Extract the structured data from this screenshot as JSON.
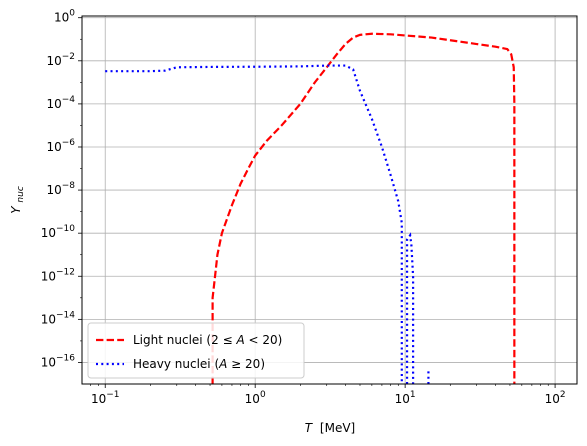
{
  "chart_data": {
    "type": "line",
    "title": "",
    "xlabel_main": "T",
    "xlabel_unit": "[MeV]",
    "ylabel_base": "Y",
    "ylabel_sub": "nuc",
    "xscale": "log",
    "yscale": "log",
    "xlim": [
      0.07,
      140
    ],
    "ylim": [
      1e-17,
      1.2
    ],
    "grid": true,
    "legend_position": "lower-left",
    "x_ticks": [
      {
        "value": 0.1,
        "base": "10",
        "exp": "−1"
      },
      {
        "value": 1,
        "base": "10",
        "exp": "0"
      },
      {
        "value": 10,
        "base": "10",
        "exp": "1"
      },
      {
        "value": 100,
        "base": "10",
        "exp": "2"
      }
    ],
    "y_ticks": [
      {
        "value": 1,
        "base": "10",
        "exp": "0"
      },
      {
        "value": 0.01,
        "base": "10",
        "exp": "−2"
      },
      {
        "value": 0.0001,
        "base": "10",
        "exp": "−4"
      },
      {
        "value": 1e-06,
        "base": "10",
        "exp": "−6"
      },
      {
        "value": 1e-08,
        "base": "10",
        "exp": "−8"
      },
      {
        "value": 1e-10,
        "base": "10",
        "exp": "−10"
      },
      {
        "value": 1e-12,
        "base": "10",
        "exp": "−12"
      },
      {
        "value": 1e-14,
        "base": "10",
        "exp": "−14"
      },
      {
        "value": 1e-16,
        "base": "10",
        "exp": "−16"
      }
    ],
    "series": [
      {
        "name": "Light nuclei (2 ≤ A < 20)",
        "color": "#ff0000",
        "style": "dashed",
        "segments": [
          [
            [
              0.52,
              1e-17
            ],
            [
              0.52,
              1e-13
            ],
            [
              0.54,
              1e-12
            ],
            [
              0.56,
              1e-11
            ],
            [
              0.6,
              1e-10
            ],
            [
              0.7,
              2e-09
            ],
            [
              0.8,
              2e-08
            ],
            [
              0.9,
              1e-07
            ],
            [
              1.0,
              4e-07
            ],
            [
              1.2,
              2e-06
            ],
            [
              1.5,
              1e-05
            ],
            [
              2.0,
              0.0001
            ],
            [
              2.5,
              0.001
            ],
            [
              3.0,
              0.005
            ],
            [
              3.5,
              0.02
            ],
            [
              4.0,
              0.06
            ],
            [
              4.5,
              0.12
            ],
            [
              5.0,
              0.16
            ],
            [
              6.0,
              0.18
            ],
            [
              8.0,
              0.17
            ],
            [
              10.0,
              0.15
            ],
            [
              15.0,
              0.12
            ],
            [
              20.0,
              0.09
            ],
            [
              30.0,
              0.06
            ],
            [
              40.0,
              0.045
            ],
            [
              48.0,
              0.035
            ],
            [
              51.0,
              0.02
            ],
            [
              53.0,
              0.005
            ],
            [
              53.5,
              0.0001
            ],
            [
              53.5,
              1e-17
            ]
          ]
        ]
      },
      {
        "name": "Heavy nuclei (A ≥ 20)",
        "color": "#0000ff",
        "style": "dotted",
        "segments": [
          [
            [
              0.1,
              0.0033
            ],
            [
              0.15,
              0.0033
            ],
            [
              0.2,
              0.0033
            ],
            [
              0.25,
              0.0035
            ],
            [
              0.3,
              0.005
            ],
            [
              0.5,
              0.0052
            ],
            [
              1.0,
              0.0053
            ],
            [
              2.0,
              0.0055
            ],
            [
              3.0,
              0.006
            ],
            [
              4.0,
              0.006
            ],
            [
              4.5,
              0.004
            ],
            [
              5.0,
              0.0004
            ],
            [
              6.0,
              2e-05
            ],
            [
              7.0,
              1e-06
            ],
            [
              8.0,
              5e-08
            ],
            [
              9.0,
              3e-09
            ],
            [
              9.5,
              3e-10
            ],
            [
              9.5,
              1e-17
            ]
          ],
          [
            [
              10.3,
              1e-17
            ],
            [
              10.3,
              5e-11
            ],
            [
              10.8,
              8e-11
            ],
            [
              11.0,
              3e-11
            ],
            [
              11.3,
              1e-12
            ],
            [
              11.3,
              1e-17
            ]
          ],
          [
            [
              14.3,
              1e-17
            ],
            [
              14.3,
              5e-17
            ]
          ]
        ]
      }
    ],
    "legend": [
      {
        "prefix": "Light nuclei (2 ≤ ",
        "var": "A",
        "suffix": " < 20)"
      },
      {
        "prefix": "Heavy nuclei (",
        "var": "A",
        "suffix": " ≥ 20)"
      }
    ]
  }
}
